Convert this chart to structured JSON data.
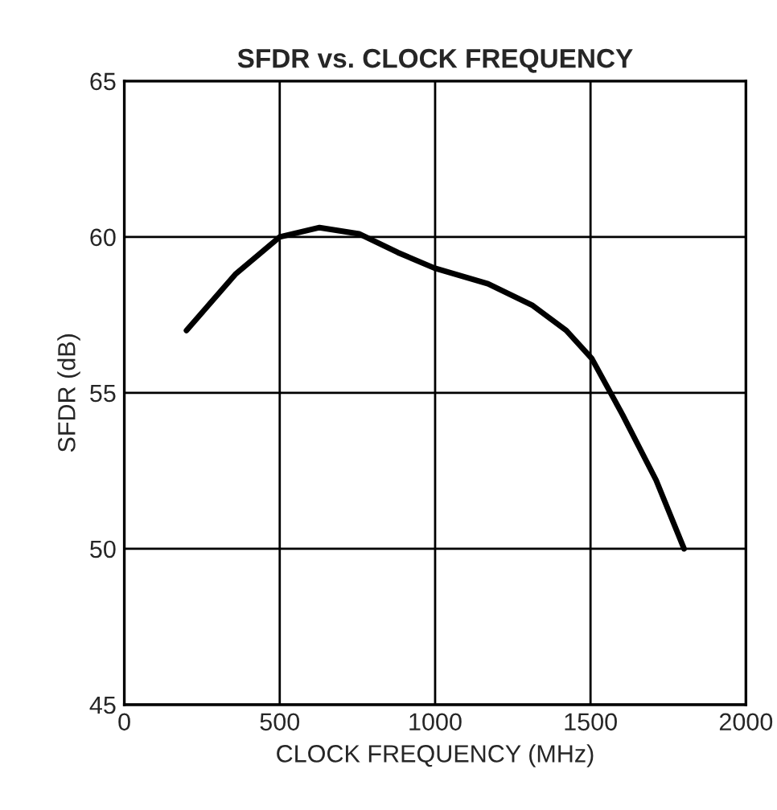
{
  "chart_data": {
    "type": "line",
    "title": "SFDR vs. CLOCK FREQUENCY",
    "xlabel": "CLOCK FREQUENCY (MHz)",
    "ylabel": "SFDR (dB)",
    "xlim": [
      0,
      2000
    ],
    "xticks": [
      0,
      500,
      1000,
      1500,
      2000
    ],
    "ylim": [
      45,
      65
    ],
    "yticks": [
      45,
      50,
      55,
      60,
      65
    ],
    "grid": true,
    "marker": "none",
    "line_style": "solid",
    "series": [
      {
        "color": "#000000",
        "x": [
          200,
          357,
          500,
          628,
          755,
          880,
          998,
          1170,
          1314,
          1422,
          1504,
          1603,
          1711,
          1801
        ],
        "values": [
          57.0,
          58.8,
          60.0,
          60.3,
          60.1,
          59.5,
          59.0,
          58.5,
          57.8,
          57.0,
          56.1,
          54.3,
          52.2,
          50.0
        ]
      }
    ]
  }
}
